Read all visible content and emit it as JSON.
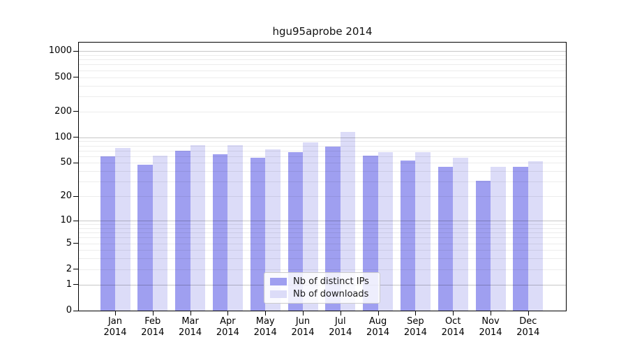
{
  "title": "hgu95aprobe 2014",
  "chart_data": {
    "type": "bar",
    "title": "hgu95aprobe 2014",
    "categories": [
      "Jan",
      "Feb",
      "Mar",
      "Apr",
      "May",
      "Jun",
      "Jul",
      "Aug",
      "Sep",
      "Oct",
      "Nov",
      "Dec"
    ],
    "x_year_label": "2014",
    "series": [
      {
        "name": "Nb of distinct IPs",
        "color": "#9f9ff0",
        "values": [
          60,
          48,
          70,
          63,
          58,
          67,
          78,
          61,
          53,
          45,
          31,
          45
        ]
      },
      {
        "name": "Nb of downloads",
        "color": "#dcdcf8",
        "values": [
          75,
          61,
          81,
          81,
          72,
          87,
          115,
          67,
          67,
          58,
          45,
          52
        ]
      }
    ],
    "y_ticks": [
      0,
      1,
      2,
      5,
      10,
      20,
      50,
      100,
      200,
      500,
      1000
    ],
    "y_major_gridlines": [
      1,
      10,
      100,
      1000
    ],
    "y_scale": "log10(value+1)",
    "ylim": [
      0,
      1240
    ],
    "grid": true,
    "legend_position": "inside-bottom-center",
    "legend": {
      "items": [
        {
          "label": "Nb of distinct IPs",
          "color": "#9f9ff0"
        },
        {
          "label": "Nb of downloads",
          "color": "#dcdcf8"
        }
      ]
    }
  },
  "colors": {
    "background": "#ffffff",
    "frame": "#000000",
    "bar_distinct_ips": "#9f9ff0",
    "bar_downloads": "#dcdcf8",
    "legend_border": "#cccccc"
  }
}
